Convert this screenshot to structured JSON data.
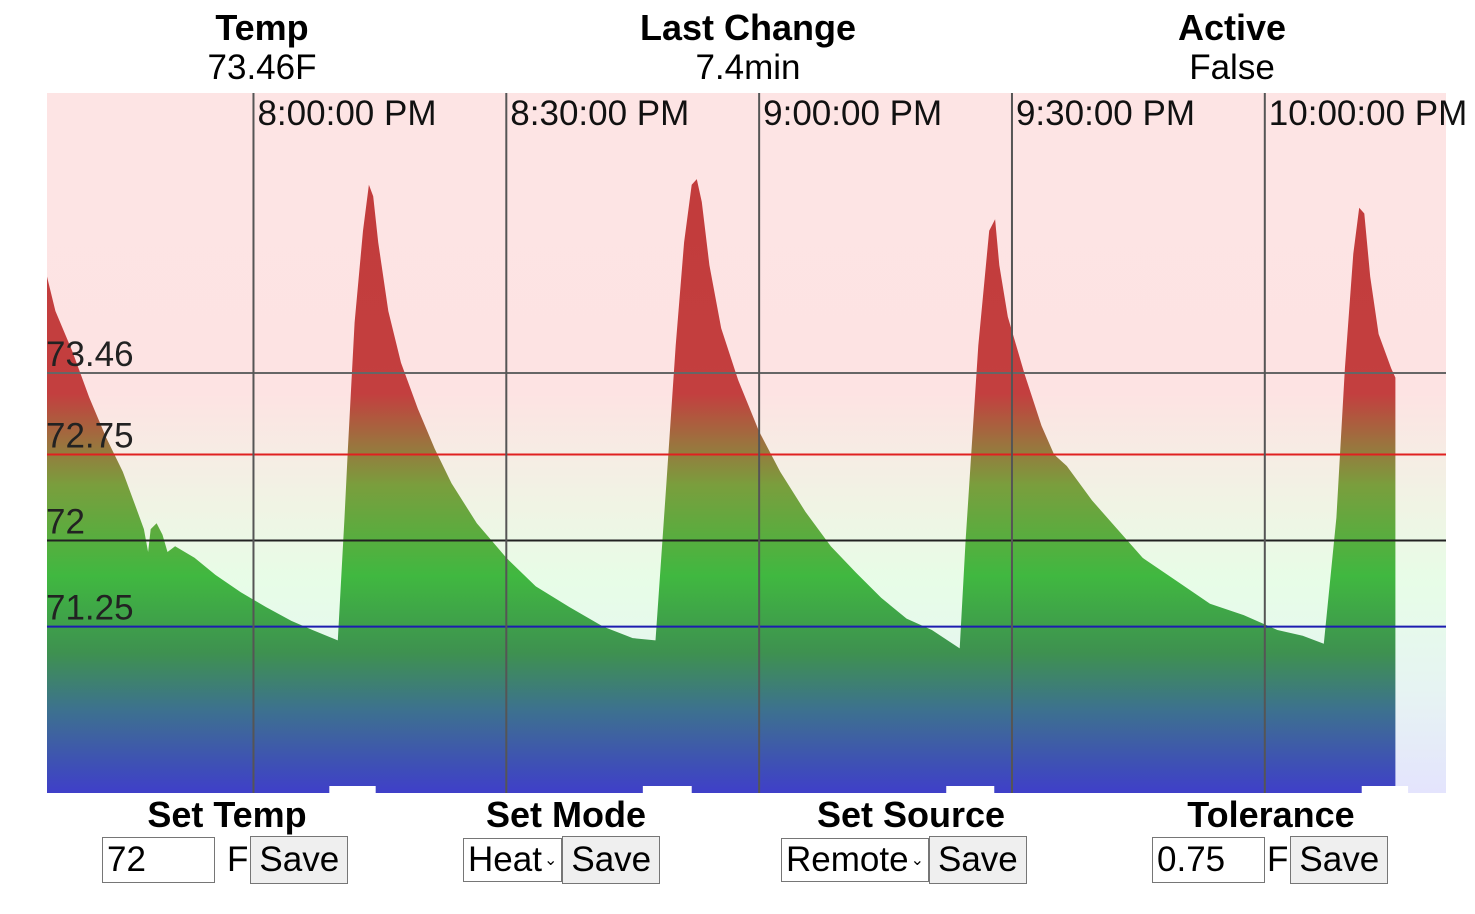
{
  "stats": {
    "temp": {
      "label": "Temp",
      "value": "73.46F"
    },
    "last_change": {
      "label": "Last Change",
      "value": "7.4min"
    },
    "active": {
      "label": "Active",
      "value": "False"
    }
  },
  "controls": {
    "set_temp": {
      "label": "Set Temp",
      "value": "72",
      "unit": "F",
      "save_label": "Save"
    },
    "set_mode": {
      "label": "Set Mode",
      "selected": "Heat",
      "save_label": "Save"
    },
    "set_source": {
      "label": "Set Source",
      "selected": "Remote",
      "save_label": "Save"
    },
    "tolerance": {
      "label": "Tolerance",
      "value": "0.75",
      "unit": "F",
      "save_label": "Save"
    }
  },
  "chart_data": {
    "type": "area",
    "x_unit": "minutes after 7:38 PM",
    "x_range": [
      0,
      166
    ],
    "y_range": [
      69.8,
      75.9
    ],
    "time_labels": [
      "8:00:00 PM",
      "8:30:00 PM",
      "9:00:00 PM",
      "9:30:00 PM",
      "10:00:00 PM"
    ],
    "time_label_minutes": [
      24.5,
      54.5,
      84.5,
      114.5,
      144.5
    ],
    "ref_lines": [
      {
        "label": "73.46",
        "value": 73.46,
        "color": "#666666"
      },
      {
        "label": "72.75",
        "value": 72.75,
        "color": "#e02020"
      },
      {
        "label": "72",
        "value": 72.0,
        "color": "#222222"
      },
      {
        "label": "71.25",
        "value": 71.25,
        "color": "#1c1cb0"
      }
    ],
    "active_markers": [
      [
        33.5,
        39
      ],
      [
        70.7,
        76.5
      ],
      [
        106.7,
        112.4
      ],
      [
        156,
        161.5
      ]
    ],
    "series": [
      {
        "values": [
          [
            0,
            74.3
          ],
          [
            1,
            74.0
          ],
          [
            3,
            73.65
          ],
          [
            5,
            73.25
          ],
          [
            7,
            72.9
          ],
          [
            9,
            72.6
          ],
          [
            10.5,
            72.3
          ],
          [
            11.5,
            72.1
          ],
          [
            12,
            71.9
          ],
          [
            12.3,
            72.1
          ],
          [
            13,
            72.15
          ],
          [
            13.7,
            72.05
          ],
          [
            14.3,
            71.9
          ],
          [
            15.2,
            71.95
          ],
          [
            17.5,
            71.85
          ],
          [
            20,
            71.7
          ],
          [
            23,
            71.55
          ],
          [
            26,
            71.42
          ],
          [
            29,
            71.3
          ],
          [
            31.5,
            71.22
          ],
          [
            34.5,
            71.13
          ],
          [
            35.3,
            72.2
          ],
          [
            35.7,
            72.8
          ],
          [
            36.5,
            73.9
          ],
          [
            37.5,
            74.7
          ],
          [
            38.2,
            75.1
          ],
          [
            38.7,
            75.0
          ],
          [
            39.3,
            74.6
          ],
          [
            40.5,
            74.0
          ],
          [
            42,
            73.55
          ],
          [
            44,
            73.15
          ],
          [
            46,
            72.8
          ],
          [
            48,
            72.5
          ],
          [
            51,
            72.15
          ],
          [
            54.5,
            71.85
          ],
          [
            58,
            71.6
          ],
          [
            62,
            71.42
          ],
          [
            66,
            71.25
          ],
          [
            69.5,
            71.15
          ],
          [
            72.2,
            71.13
          ],
          [
            73.5,
            72.5
          ],
          [
            74.6,
            73.7
          ],
          [
            75.6,
            74.6
          ],
          [
            76.5,
            75.1
          ],
          [
            77.1,
            75.15
          ],
          [
            77.7,
            74.95
          ],
          [
            78.6,
            74.4
          ],
          [
            80,
            73.85
          ],
          [
            82,
            73.4
          ],
          [
            84.5,
            72.95
          ],
          [
            87,
            72.6
          ],
          [
            90,
            72.25
          ],
          [
            93,
            71.95
          ],
          [
            96,
            71.72
          ],
          [
            99,
            71.5
          ],
          [
            102,
            71.32
          ],
          [
            105,
            71.22
          ],
          [
            108.3,
            71.06
          ],
          [
            109,
            72.0
          ],
          [
            110.5,
            73.7
          ],
          [
            111.8,
            74.7
          ],
          [
            112.5,
            74.8
          ],
          [
            113,
            74.4
          ],
          [
            114,
            73.95
          ],
          [
            116,
            73.45
          ],
          [
            118,
            73.0
          ],
          [
            119.5,
            72.75
          ],
          [
            121,
            72.65
          ],
          [
            124,
            72.35
          ],
          [
            127,
            72.1
          ],
          [
            130,
            71.85
          ],
          [
            134,
            71.65
          ],
          [
            138,
            71.45
          ],
          [
            142,
            71.35
          ],
          [
            146,
            71.22
          ],
          [
            149,
            71.17
          ],
          [
            151.5,
            71.1
          ],
          [
            153,
            72.2
          ],
          [
            154,
            73.5
          ],
          [
            155,
            74.5
          ],
          [
            155.7,
            74.9
          ],
          [
            156.3,
            74.85
          ],
          [
            157,
            74.3
          ],
          [
            158,
            73.8
          ],
          [
            159.5,
            73.5
          ],
          [
            160,
            73.42
          ]
        ]
      }
    ]
  }
}
